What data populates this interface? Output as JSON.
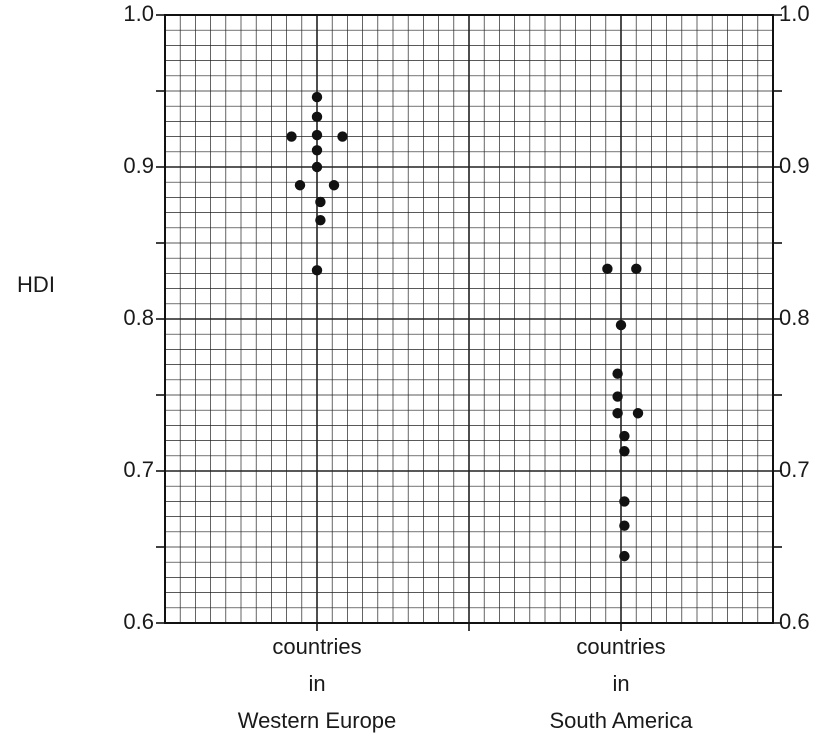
{
  "chart_data": {
    "type": "scatter",
    "ylabel": "HDI",
    "ylim": [
      0.6,
      1.0
    ],
    "y_ticks": [
      "0.6",
      "0.7",
      "0.8",
      "0.9",
      "1.0"
    ],
    "grid": true,
    "secondary_y_axis": true,
    "categories": [
      {
        "lines": [
          "countries",
          "in",
          "Western Europe"
        ]
      },
      {
        "lines": [
          "countries",
          "in",
          "South America"
        ]
      }
    ],
    "series": [
      {
        "category_index": 0,
        "points": [
          {
            "offset": 0,
            "y": 0.946
          },
          {
            "offset": 0,
            "y": 0.933
          },
          {
            "offset": -1.5,
            "y": 0.92
          },
          {
            "offset": 0,
            "y": 0.921
          },
          {
            "offset": 1.5,
            "y": 0.92
          },
          {
            "offset": 0,
            "y": 0.911
          },
          {
            "offset": 0,
            "y": 0.9
          },
          {
            "offset": -1,
            "y": 0.888
          },
          {
            "offset": 1,
            "y": 0.888
          },
          {
            "offset": 0.2,
            "y": 0.877
          },
          {
            "offset": 0.2,
            "y": 0.865
          },
          {
            "offset": 0,
            "y": 0.832
          }
        ]
      },
      {
        "category_index": 1,
        "points": [
          {
            "offset": -0.8,
            "y": 0.833
          },
          {
            "offset": 0.9,
            "y": 0.833
          },
          {
            "offset": 0,
            "y": 0.796
          },
          {
            "offset": -0.2,
            "y": 0.764
          },
          {
            "offset": -0.2,
            "y": 0.749
          },
          {
            "offset": -0.2,
            "y": 0.738
          },
          {
            "offset": 1,
            "y": 0.738
          },
          {
            "offset": 0.2,
            "y": 0.723
          },
          {
            "offset": 0.2,
            "y": 0.713
          },
          {
            "offset": 0.2,
            "y": 0.68
          },
          {
            "offset": 0.2,
            "y": 0.664
          },
          {
            "offset": 0.2,
            "y": 0.644
          }
        ]
      }
    ]
  }
}
